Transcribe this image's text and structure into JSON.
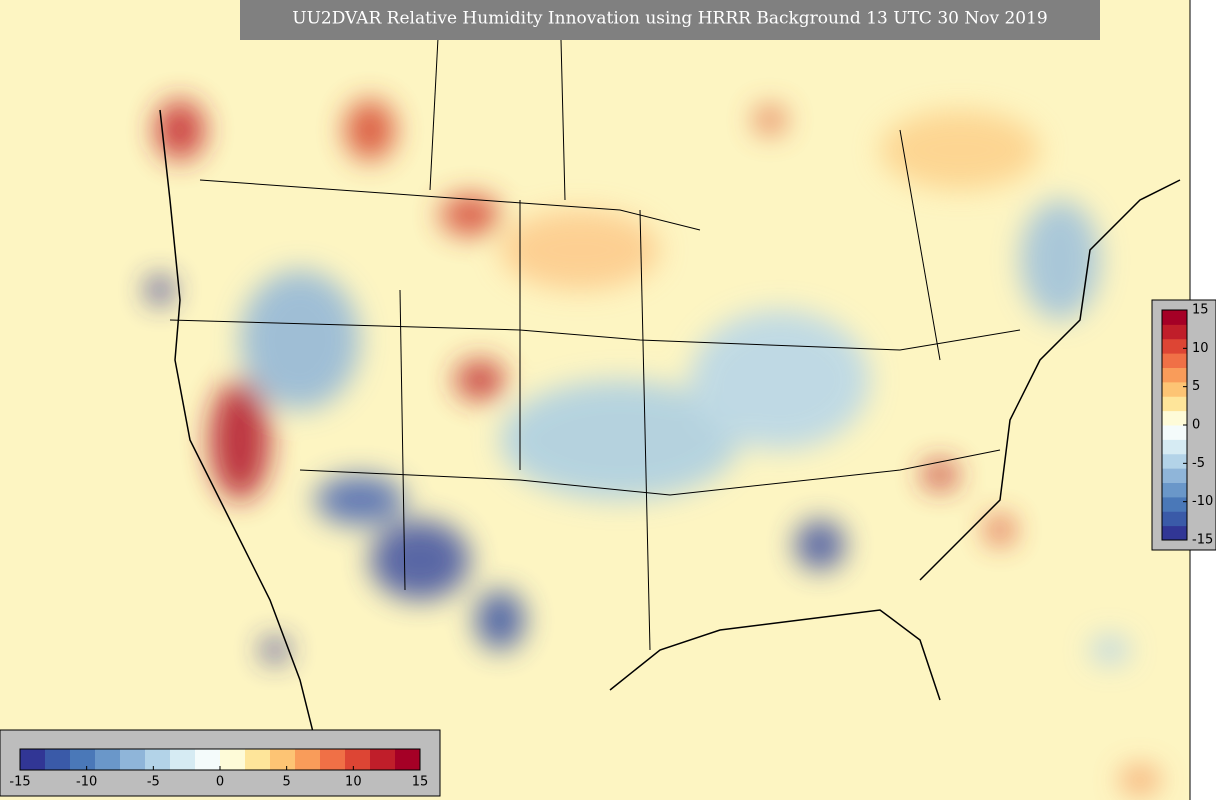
{
  "title": "UU2DVAR Relative Humidity Innovation using HRRR Background 13 UTC 30 Nov 2019",
  "colorbar": {
    "ticks": [
      -15,
      -10,
      -5,
      0,
      5,
      10,
      15
    ],
    "colors": [
      "#313695",
      "#3a5aa8",
      "#4a78b8",
      "#6a97c9",
      "#8fb5d9",
      "#b3d3e8",
      "#d6ebf3",
      "#f4fbfb",
      "#fefbd8",
      "#fee59a",
      "#fdc474",
      "#f99c5a",
      "#f07046",
      "#dd4534",
      "#c01e2a",
      "#a50026"
    ]
  }
}
